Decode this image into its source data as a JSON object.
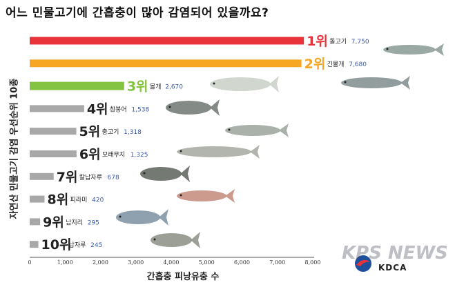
{
  "chart_data": {
    "type": "bar",
    "orientation": "horizontal",
    "title": "어느 민물고기에 간흡충이 많아 감염되어 있을까요?",
    "xlabel": "간흡충 피낭유충 수",
    "ylabel": "자연산 민물고기 감염 우선순위 10종",
    "xlim": [
      0,
      8000
    ],
    "xticks": [
      "0",
      "1,000",
      "2,000",
      "3,000",
      "4,000",
      "5,000",
      "6,000",
      "7,000",
      "8,000"
    ],
    "grid": false,
    "categories": [
      "돌고기",
      "긴몰개",
      "몰개",
      "참붕어",
      "충고기",
      "모래무지",
      "칼납자루",
      "피라미",
      "납지리",
      "납자루"
    ],
    "ranks": [
      "1위",
      "2위",
      "3위",
      "4위",
      "5위",
      "6위",
      "7위",
      "8위",
      "9위",
      "10위"
    ],
    "values": [
      7750,
      7680,
      2670,
      1538,
      1318,
      1325,
      678,
      420,
      295,
      245
    ],
    "value_labels": [
      "7,750",
      "7,680",
      "2,670",
      "1,538",
      "1,318",
      "1,325",
      "678",
      "420",
      "295",
      "245"
    ],
    "bar_colors": [
      "#e8333b",
      "#f6a623",
      "#84c341",
      "#a8a8a8",
      "#a8a8a8",
      "#a8a8a8",
      "#a8a8a8",
      "#a8a8a8",
      "#a8a8a8",
      "#a8a8a8"
    ],
    "rank_colors": [
      "#e8333b",
      "#f6a623",
      "#84c341",
      "#222222",
      "#222222",
      "#222222",
      "#222222",
      "#222222",
      "#222222",
      "#222222"
    ],
    "value_color": "#3a5aa8"
  },
  "watermark": "KPS NEWS",
  "logo_text": "KDCA"
}
